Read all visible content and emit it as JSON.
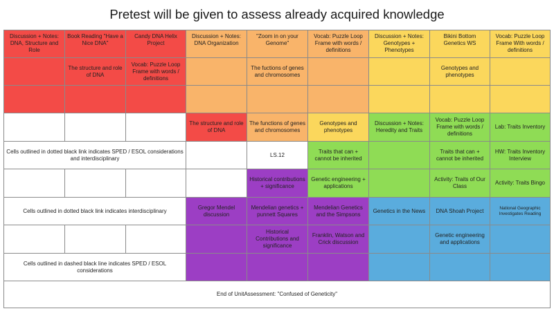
{
  "title": "Pretest will be given to assess already acquired knowledge",
  "rows": [
    [
      "Discussion + Notes: DNA, Structure and Role",
      "Book Reading \"Have a Nice DNA\"",
      "Candy DNA Helix Project",
      "Discussion + Notes: DNA Organization",
      "\"Zoom in on your Genome\"",
      "Vocab: Puzzle Loop Frame with words / definitions",
      "Discussion + Notes: Genotypes + Phenotypes",
      "Bikini Bottom Genetics WS",
      "Vocab: Puzzle Loop Frame With words / definitions"
    ],
    [
      "",
      "The structure and role of DNA",
      "Vocab: Puzzle Loop Frame with words / definitions",
      "",
      "The fuctions of genes and chromosomes",
      "",
      "",
      "Genotypes and phenotypes",
      ""
    ],
    [
      "",
      "",
      "",
      "",
      "",
      "",
      "",
      "",
      ""
    ],
    [
      "",
      "",
      "",
      "The structure and role of DNA",
      "The functions of genes and chromosomes",
      "Genotypes and phenotypes",
      "Discussion + Notes: Heredity and Traits",
      "Vocab: Puzzle Loop Frame with words / definitions",
      "Lab: Traits Inventory"
    ],
    [
      "Cells outlined in dotted black link indicates SPED / ESOL considerations and interdisciplinary",
      "",
      "LS.12",
      "Traits that can + cannot be inherited",
      "",
      "Traits that can + cannot be inherited",
      "HW: Traits Inventory Interview"
    ],
    [
      "",
      "",
      "",
      "",
      "Historical contributions + significance",
      "Genetic engineering + applications",
      "",
      "Activity: Traits of Our Class",
      "Activity: Traits Bingo"
    ],
    [
      "Cells outlined in dotted black link indicates interdisciplinary",
      "Gregor Mendel discussion",
      "Mendelian genetics + punnett Squares",
      "Mendelian Genetics and the Simpsons",
      "Genetics in the News",
      "DNA Shoah Project",
      "National Geographic Investigates Reading"
    ],
    [
      "",
      "",
      "",
      "",
      "Historical Contributions and significance",
      "Franklin, Watson and Crick discussion",
      "",
      "Genetic engineering and applications",
      ""
    ],
    [
      "Cells outlined in dashed black line indicates SPED / ESOL considerations",
      "",
      "",
      "",
      "",
      "",
      ""
    ]
  ],
  "footer": "End of UnitAssessment: \"Confused of Geneticity\"",
  "colors": {
    "red": "#f34b47",
    "orange": "#f9b46a",
    "yellow": "#fbd75c",
    "green": "#8fdc55",
    "purple": "#9c3ec4",
    "blue": "#5aacdd"
  }
}
